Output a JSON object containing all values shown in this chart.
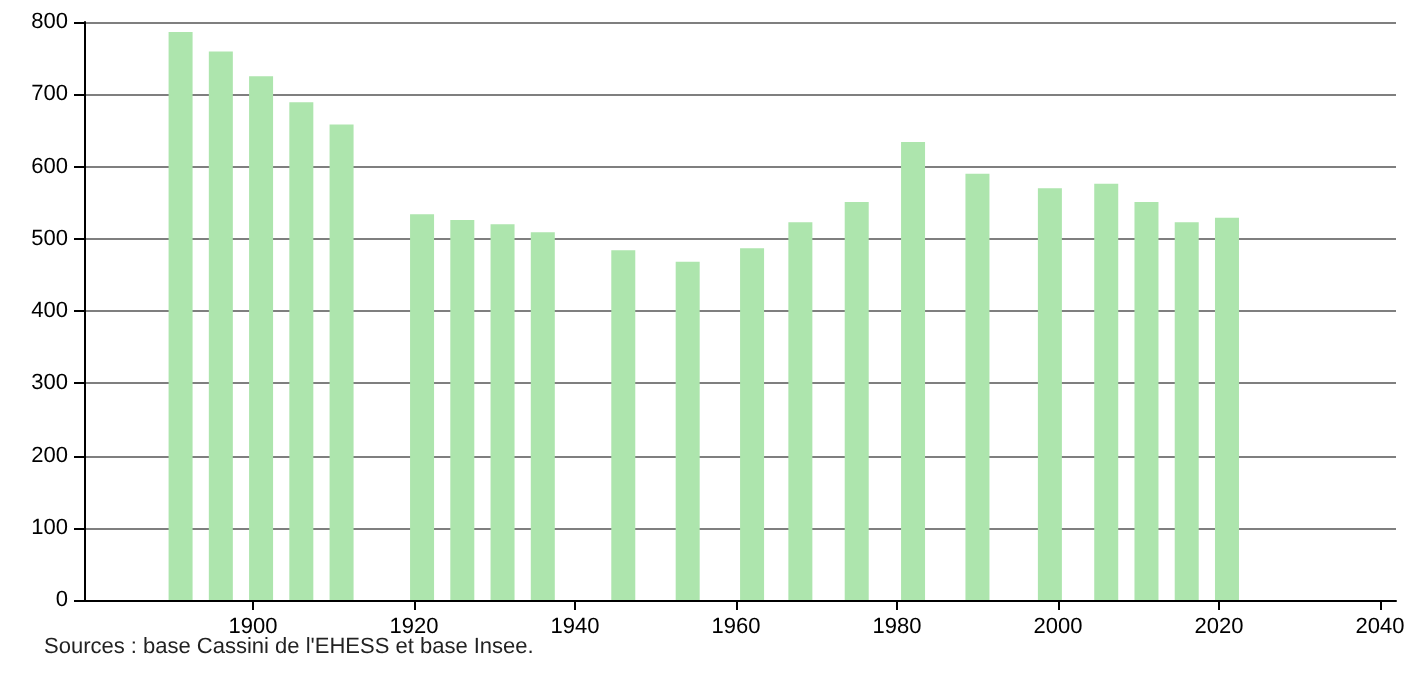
{
  "chart_data": {
    "type": "bar",
    "x": [
      1891,
      1896,
      1901,
      1906,
      1911,
      1921,
      1926,
      1931,
      1936,
      1946,
      1954,
      1962,
      1968,
      1975,
      1982,
      1990,
      1999,
      2006,
      2011,
      2016,
      2021
    ],
    "values": [
      786,
      759,
      725,
      689,
      658,
      534,
      526,
      520,
      509,
      484,
      468,
      487,
      523,
      551,
      634,
      590,
      570,
      576,
      551,
      523,
      529
    ],
    "color": "#ade5ad",
    "xlim": [
      1879,
      2042
    ],
    "xticks": [
      1900,
      1920,
      1940,
      1960,
      1980,
      2000,
      2020,
      2040
    ],
    "ylim": [
      0,
      800
    ],
    "yticks": [
      0,
      100,
      200,
      300,
      400,
      500,
      600,
      700,
      800
    ],
    "grid": "y",
    "annotations": [
      "Sources : base Cassini de l'EHESS et base Insee."
    ]
  }
}
